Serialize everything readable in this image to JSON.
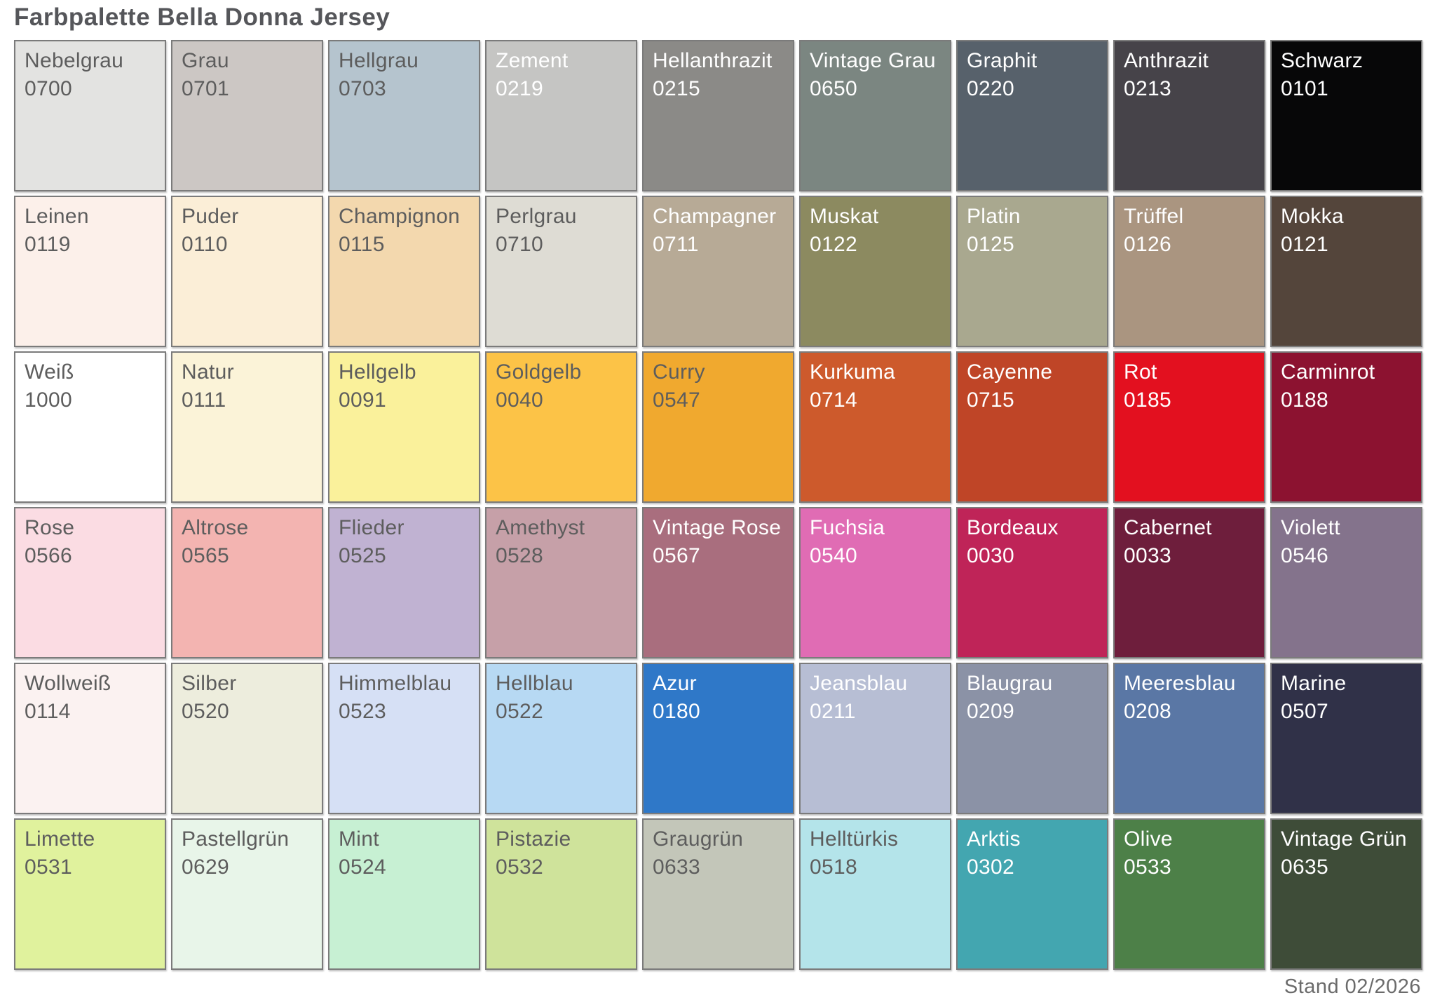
{
  "page": {
    "title": "Farbpalette Bella Donna Jersey",
    "version_date": "Stand 02/2026"
  },
  "text_colors": {
    "dark": "#5d5d5d",
    "light": "#ffffff"
  },
  "border_color": "#7b7b7b",
  "palette": {
    "rows": 6,
    "cols": 9,
    "swatches": [
      {
        "name": "Nebelgrau",
        "code": "0700",
        "color": "#e3e3e1",
        "text": "dark"
      },
      {
        "name": "Grau",
        "code": "0701",
        "color": "#ccc7c4",
        "text": "dark"
      },
      {
        "name": "Hellgrau",
        "code": "0703",
        "color": "#b5c4ce",
        "text": "dark"
      },
      {
        "name": "Zement",
        "code": "0219",
        "color": "#c5c5c3",
        "text": "light"
      },
      {
        "name": "Hellanthrazit",
        "code": "0215",
        "color": "#8b8a87",
        "text": "light"
      },
      {
        "name": "Vintage Grau",
        "code": "0650",
        "color": "#7b8681",
        "text": "light"
      },
      {
        "name": "Graphit",
        "code": "0220",
        "color": "#57616b",
        "text": "light"
      },
      {
        "name": "Anthrazit",
        "code": "0213",
        "color": "#464349",
        "text": "light"
      },
      {
        "name": "Schwarz",
        "code": "0101",
        "color": "#070708",
        "text": "light"
      },
      {
        "name": "Leinen",
        "code": "0119",
        "color": "#fcf0ea",
        "text": "dark"
      },
      {
        "name": "Puder",
        "code": "0110",
        "color": "#fbeed7",
        "text": "dark"
      },
      {
        "name": "Champignon",
        "code": "0115",
        "color": "#f3d8ae",
        "text": "dark"
      },
      {
        "name": "Perlgrau",
        "code": "0710",
        "color": "#dedcd4",
        "text": "dark"
      },
      {
        "name": "Champagner",
        "code": "0711",
        "color": "#b7aa96",
        "text": "light"
      },
      {
        "name": "Muskat",
        "code": "0122",
        "color": "#8c8a60",
        "text": "light"
      },
      {
        "name": "Platin",
        "code": "0125",
        "color": "#a9a88f",
        "text": "light"
      },
      {
        "name": "Trüffel",
        "code": "0126",
        "color": "#aa9580",
        "text": "light"
      },
      {
        "name": "Mokka",
        "code": "0121",
        "color": "#54453b",
        "text": "light"
      },
      {
        "name": "Weiß",
        "code": "1000",
        "color": "#ffffff",
        "text": "dark"
      },
      {
        "name": "Natur",
        "code": "0111",
        "color": "#fbf3d8",
        "text": "dark"
      },
      {
        "name": "Hellgelb",
        "code": "0091",
        "color": "#faf19b",
        "text": "dark"
      },
      {
        "name": "Goldgelb",
        "code": "0040",
        "color": "#fcc347",
        "text": "dark"
      },
      {
        "name": "Curry",
        "code": "0547",
        "color": "#f0a92f",
        "text": "dark"
      },
      {
        "name": "Kurkuma",
        "code": "0714",
        "color": "#cd5a2c",
        "text": "light"
      },
      {
        "name": "Cayenne",
        "code": "0715",
        "color": "#bf4527",
        "text": "light"
      },
      {
        "name": "Rot",
        "code": "0185",
        "color": "#e3101f",
        "text": "light"
      },
      {
        "name": "Carminrot",
        "code": "0188",
        "color": "#8c1230",
        "text": "light"
      },
      {
        "name": "Rose",
        "code": "0566",
        "color": "#fbdce3",
        "text": "dark"
      },
      {
        "name": "Altrose",
        "code": "0565",
        "color": "#f3b4b1",
        "text": "dark"
      },
      {
        "name": "Flieder",
        "code": "0525",
        "color": "#c0b2d2",
        "text": "dark"
      },
      {
        "name": "Amethyst",
        "code": "0528",
        "color": "#c6a0a8",
        "text": "dark"
      },
      {
        "name": "Vintage Rose",
        "code": "0567",
        "color": "#a96e7e",
        "text": "light"
      },
      {
        "name": "Fuchsia",
        "code": "0540",
        "color": "#e06cb4",
        "text": "light"
      },
      {
        "name": "Bordeaux",
        "code": "0030",
        "color": "#bf2458",
        "text": "light"
      },
      {
        "name": "Cabernet",
        "code": "0033",
        "color": "#6e1e3c",
        "text": "light"
      },
      {
        "name": "Violett",
        "code": "0546",
        "color": "#84738c",
        "text": "light"
      },
      {
        "name": "Wollweiß",
        "code": "0114",
        "color": "#fbf2f1",
        "text": "dark"
      },
      {
        "name": "Silber",
        "code": "0520",
        "color": "#ededdd",
        "text": "dark"
      },
      {
        "name": "Himmelblau",
        "code": "0523",
        "color": "#d6e0f5",
        "text": "dark"
      },
      {
        "name": "Hellblau",
        "code": "0522",
        "color": "#b7d9f3",
        "text": "dark"
      },
      {
        "name": "Azur",
        "code": "0180",
        "color": "#2f78c8",
        "text": "light"
      },
      {
        "name": "Jeansblau",
        "code": "0211",
        "color": "#b7bed4",
        "text": "light"
      },
      {
        "name": "Blaugrau",
        "code": "0209",
        "color": "#8b92a6",
        "text": "light"
      },
      {
        "name": "Meeresblau",
        "code": "0208",
        "color": "#5a77a5",
        "text": "light"
      },
      {
        "name": "Marine",
        "code": "0507",
        "color": "#303148",
        "text": "light"
      },
      {
        "name": "Limette",
        "code": "0531",
        "color": "#e0f29d",
        "text": "dark"
      },
      {
        "name": "Pastellgrün",
        "code": "0629",
        "color": "#e8f5e9",
        "text": "dark"
      },
      {
        "name": "Mint",
        "code": "0524",
        "color": "#c7f0d3",
        "text": "dark"
      },
      {
        "name": "Pistazie",
        "code": "0532",
        "color": "#cfe39b",
        "text": "dark"
      },
      {
        "name": "Graugrün",
        "code": "0633",
        "color": "#c3c6b9",
        "text": "dark"
      },
      {
        "name": "Helltürkis",
        "code": "0518",
        "color": "#b4e4ea",
        "text": "dark"
      },
      {
        "name": "Arktis",
        "code": "0302",
        "color": "#43a6b0",
        "text": "light"
      },
      {
        "name": "Olive",
        "code": "0533",
        "color": "#4d8048",
        "text": "light"
      },
      {
        "name": "Vintage Grün",
        "code": "0635",
        "color": "#3e4c38",
        "text": "light"
      }
    ]
  }
}
